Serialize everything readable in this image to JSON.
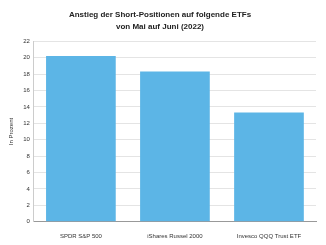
{
  "chart_data": {
    "type": "bar",
    "title": "Anstieg der Short-Positionen auf folgende ETFs",
    "subtitle": "von Mai auf Juni (2022)",
    "y_label": "In Prozent",
    "categories": [
      "SPDR S&P 500",
      "iShares Russel 2000",
      "Invesco QQQ Trust ETF"
    ],
    "values": [
      20.2,
      18.3,
      13.3
    ],
    "color": "#5cb5e6",
    "ylim": [
      0,
      22
    ],
    "yticks": [
      0,
      2,
      4,
      6,
      8,
      10,
      12,
      14,
      16,
      18,
      20,
      22
    ],
    "grid": true
  }
}
